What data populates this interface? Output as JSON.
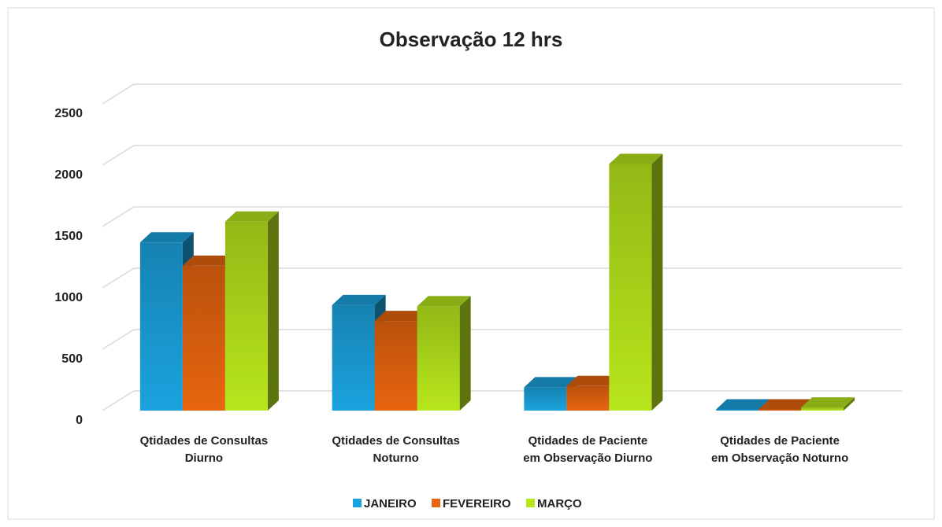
{
  "chart_data": {
    "type": "bar3d",
    "title": "Observação 12 hrs",
    "categories": [
      "Qtidades de Consultas\nDiurno",
      "Qtidades de Consultas\nNoturno",
      "Qtidades de Paciente\nem Observação Diurno",
      "Qtidades de Paciente\nem Observação Noturno"
    ],
    "series": [
      {
        "name": "JANEIRO",
        "color": "#1ba3df",
        "values": [
          1370,
          860,
          190,
          10
        ]
      },
      {
        "name": "FEVEREIRO",
        "color": "#e8650f",
        "values": [
          1180,
          730,
          200,
          10
        ]
      },
      {
        "name": "MARÇO",
        "color": "#b8e61c",
        "values": [
          1540,
          850,
          2010,
          25
        ]
      }
    ],
    "ylim": [
      0,
      2500
    ],
    "yticks": [
      0,
      500,
      1000,
      1500,
      2000,
      2500
    ],
    "grid": true,
    "legend": "bottom"
  }
}
